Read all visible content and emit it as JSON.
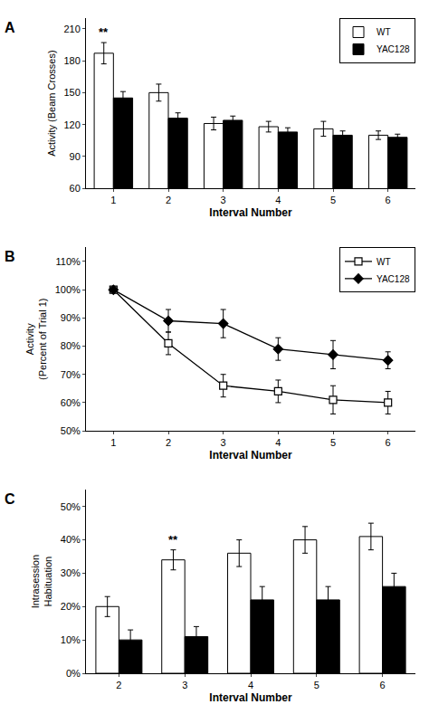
{
  "chart_data": [
    {
      "type": "bar",
      "title": "A",
      "categories": [
        "1",
        "2",
        "3",
        "4",
        "5",
        "6"
      ],
      "series": [
        {
          "name": "WT",
          "color": "white",
          "values": [
            187,
            150,
            121,
            118,
            116,
            110
          ],
          "errors": [
            10,
            8,
            6,
            5,
            7,
            4
          ]
        },
        {
          "name": "YAC128",
          "color": "black",
          "values": [
            145,
            126,
            124,
            113,
            110,
            108
          ],
          "errors": [
            6,
            5,
            4,
            4,
            4,
            3
          ]
        }
      ],
      "xlabel": "Interval Number",
      "ylabel": "Activity (Beam Crosses)",
      "ylim": [
        60,
        220
      ],
      "yticks": [
        60,
        90,
        120,
        150,
        180,
        210
      ],
      "grid": false,
      "legend": "upper right",
      "annotations": [
        {
          "text": "**",
          "category": "1",
          "series": "WT"
        }
      ]
    },
    {
      "type": "line",
      "title": "B",
      "x": [
        1,
        2,
        3,
        4,
        5,
        6
      ],
      "series": [
        {
          "name": "WT",
          "color": "black",
          "marker": "square-open",
          "values": [
            100,
            81,
            66,
            64,
            61,
            60
          ],
          "errors": [
            0,
            4,
            4,
            4,
            5,
            4
          ]
        },
        {
          "name": "YAC128",
          "color": "black",
          "marker": "diamond",
          "values": [
            100,
            89,
            88,
            79,
            77,
            75
          ],
          "errors": [
            0,
            4,
            5,
            4,
            5,
            3
          ]
        }
      ],
      "xlabel": "Interval Number",
      "ylabel": "Activity\n(Percent of Trial 1)",
      "xlim": [
        0.5,
        6.5
      ],
      "xticks": [
        1,
        2,
        3,
        4,
        5,
        6
      ],
      "ylim": [
        50,
        115
      ],
      "yticks": [
        {
          "value": 50,
          "label": "50%"
        },
        {
          "value": 60,
          "label": "60%"
        },
        {
          "value": 70,
          "label": "70%"
        },
        {
          "value": 80,
          "label": "80%"
        },
        {
          "value": 90,
          "label": "90%"
        },
        {
          "value": 100,
          "label": "100%"
        },
        {
          "value": 110,
          "label": "110%"
        }
      ],
      "grid": false,
      "legend": "upper right"
    },
    {
      "type": "bar",
      "title": "C",
      "categories": [
        "2",
        "3",
        "4",
        "5",
        "6"
      ],
      "series": [
        {
          "name": "WT",
          "color": "white",
          "values": [
            20,
            34,
            36,
            40,
            41
          ],
          "errors": [
            3,
            3,
            4,
            4,
            4
          ]
        },
        {
          "name": "YAC128",
          "color": "black",
          "values": [
            10,
            11,
            22,
            22,
            26
          ],
          "errors": [
            3,
            3,
            4,
            4,
            4
          ]
        }
      ],
      "xlabel": "Interval Number",
      "ylabel": "Intrasession\nHabituation",
      "ylim": [
        0,
        55
      ],
      "yticks": [
        {
          "value": 0,
          "label": "0%"
        },
        {
          "value": 10,
          "label": "10%"
        },
        {
          "value": 20,
          "label": "20%"
        },
        {
          "value": 30,
          "label": "30%"
        },
        {
          "value": 40,
          "label": "40%"
        },
        {
          "value": 50,
          "label": "50%"
        }
      ],
      "grid": false,
      "annotations": [
        {
          "text": "**",
          "category": "3",
          "series": "WT"
        }
      ]
    }
  ]
}
